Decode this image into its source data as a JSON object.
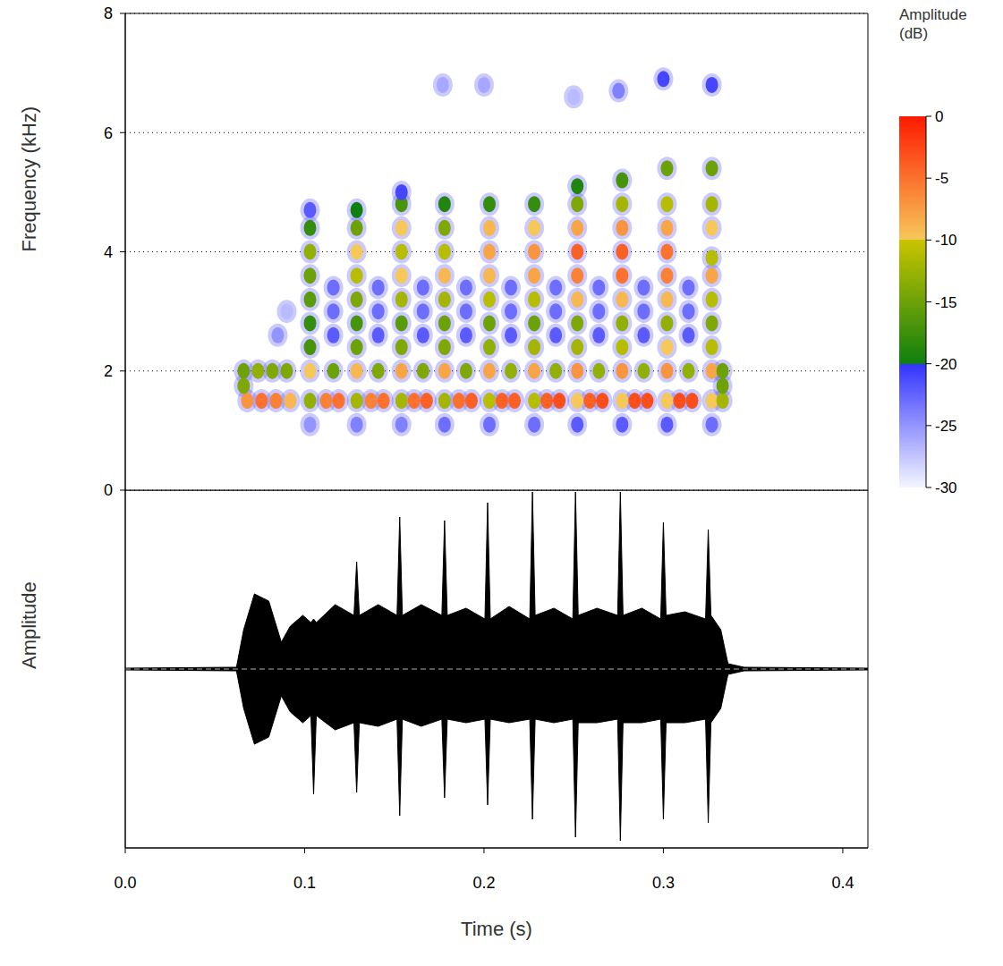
{
  "chart_data": [
    {
      "type": "heatmap",
      "y_label": "Frequency (kHz)",
      "xlim": [
        0,
        0.414
      ],
      "ylim": [
        0,
        8
      ],
      "yticks": [
        0,
        2,
        4,
        6,
        8
      ],
      "grid": true,
      "tick_labels": "y",
      "cells": [
        [
          0.103,
          1.1,
          -25
        ],
        [
          0.103,
          1.5,
          -13
        ],
        [
          0.103,
          2.0,
          -10
        ],
        [
          0.103,
          2.4,
          -17
        ],
        [
          0.103,
          2.8,
          -18
        ],
        [
          0.103,
          3.2,
          -16
        ],
        [
          0.103,
          3.6,
          -15
        ],
        [
          0.103,
          4.0,
          -13
        ],
        [
          0.103,
          4.4,
          -18
        ],
        [
          0.103,
          4.7,
          -22
        ],
        [
          0.129,
          1.1,
          -24
        ],
        [
          0.129,
          1.5,
          -12
        ],
        [
          0.129,
          2.0,
          -9
        ],
        [
          0.129,
          2.4,
          -15
        ],
        [
          0.129,
          2.8,
          -17
        ],
        [
          0.129,
          3.2,
          -14
        ],
        [
          0.129,
          3.6,
          -11
        ],
        [
          0.129,
          4.0,
          -10
        ],
        [
          0.129,
          4.4,
          -15
        ],
        [
          0.129,
          4.7,
          -20
        ],
        [
          0.154,
          1.1,
          -24
        ],
        [
          0.154,
          1.5,
          -12
        ],
        [
          0.154,
          2.0,
          -8
        ],
        [
          0.154,
          2.4,
          -14
        ],
        [
          0.154,
          2.8,
          -16
        ],
        [
          0.154,
          3.2,
          -12
        ],
        [
          0.154,
          3.6,
          -10
        ],
        [
          0.154,
          4.0,
          -11
        ],
        [
          0.154,
          4.4,
          -10
        ],
        [
          0.154,
          4.8,
          -17
        ],
        [
          0.154,
          5.0,
          -21
        ],
        [
          0.178,
          1.1,
          -23
        ],
        [
          0.178,
          1.5,
          -12
        ],
        [
          0.178,
          2.0,
          -8
        ],
        [
          0.178,
          2.4,
          -14
        ],
        [
          0.178,
          2.8,
          -15
        ],
        [
          0.178,
          3.2,
          -12
        ],
        [
          0.178,
          3.6,
          -9
        ],
        [
          0.178,
          4.0,
          -11
        ],
        [
          0.178,
          4.4,
          -14
        ],
        [
          0.178,
          4.8,
          -19
        ],
        [
          0.203,
          1.1,
          -23
        ],
        [
          0.203,
          1.5,
          -11
        ],
        [
          0.203,
          2.0,
          -8
        ],
        [
          0.203,
          2.4,
          -13
        ],
        [
          0.203,
          2.8,
          -15
        ],
        [
          0.203,
          3.2,
          -11
        ],
        [
          0.203,
          3.6,
          -9
        ],
        [
          0.203,
          4.0,
          -8
        ],
        [
          0.203,
          4.4,
          -9
        ],
        [
          0.203,
          4.8,
          -18
        ],
        [
          0.228,
          1.1,
          -23
        ],
        [
          0.228,
          1.5,
          -11
        ],
        [
          0.228,
          2.0,
          -8
        ],
        [
          0.228,
          2.4,
          -12
        ],
        [
          0.228,
          2.8,
          -15
        ],
        [
          0.228,
          3.2,
          -11
        ],
        [
          0.228,
          3.6,
          -8
        ],
        [
          0.228,
          4.0,
          -7
        ],
        [
          0.228,
          4.4,
          -10
        ],
        [
          0.228,
          4.8,
          -18
        ],
        [
          0.252,
          1.1,
          -22
        ],
        [
          0.252,
          1.5,
          -10
        ],
        [
          0.252,
          2.0,
          -7
        ],
        [
          0.252,
          2.4,
          -12
        ],
        [
          0.252,
          2.8,
          -14
        ],
        [
          0.252,
          3.2,
          -9
        ],
        [
          0.252,
          3.6,
          -6
        ],
        [
          0.252,
          4.0,
          -4
        ],
        [
          0.252,
          4.4,
          -8
        ],
        [
          0.252,
          4.8,
          -14
        ],
        [
          0.252,
          5.1,
          -19
        ],
        [
          0.277,
          1.1,
          -22
        ],
        [
          0.277,
          1.5,
          -10
        ],
        [
          0.277,
          2.0,
          -7
        ],
        [
          0.277,
          2.4,
          -11
        ],
        [
          0.277,
          2.8,
          -13
        ],
        [
          0.277,
          3.2,
          -9
        ],
        [
          0.277,
          3.6,
          -5
        ],
        [
          0.277,
          4.0,
          -4
        ],
        [
          0.277,
          4.4,
          -7
        ],
        [
          0.277,
          4.8,
          -12
        ],
        [
          0.277,
          5.2,
          -17
        ],
        [
          0.302,
          1.1,
          -22
        ],
        [
          0.302,
          1.5,
          -10
        ],
        [
          0.302,
          2.0,
          -7
        ],
        [
          0.302,
          2.4,
          -10
        ],
        [
          0.302,
          2.8,
          -13
        ],
        [
          0.302,
          3.2,
          -9
        ],
        [
          0.302,
          3.6,
          -6
        ],
        [
          0.302,
          4.0,
          -5
        ],
        [
          0.302,
          4.4,
          -8
        ],
        [
          0.302,
          4.8,
          -11
        ],
        [
          0.302,
          5.4,
          -15
        ],
        [
          0.327,
          1.1,
          -23
        ],
        [
          0.327,
          1.5,
          -10
        ],
        [
          0.327,
          2.0,
          -8
        ],
        [
          0.327,
          2.4,
          -11
        ],
        [
          0.327,
          2.8,
          -14
        ],
        [
          0.327,
          3.2,
          -11
        ],
        [
          0.327,
          3.6,
          -8
        ],
        [
          0.327,
          3.9,
          -11
        ],
        [
          0.327,
          4.4,
          -10
        ],
        [
          0.327,
          4.8,
          -12
        ],
        [
          0.327,
          5.4,
          -15
        ],
        [
          0.068,
          1.5,
          -7
        ],
        [
          0.076,
          1.5,
          -5
        ],
        [
          0.084,
          1.5,
          -6
        ],
        [
          0.092,
          1.5,
          -9
        ],
        [
          0.112,
          1.5,
          -6
        ],
        [
          0.119,
          1.5,
          -5
        ],
        [
          0.137,
          1.5,
          -6
        ],
        [
          0.144,
          1.5,
          -5
        ],
        [
          0.161,
          1.5,
          -5
        ],
        [
          0.168,
          1.5,
          -4
        ],
        [
          0.186,
          1.5,
          -5
        ],
        [
          0.193,
          1.5,
          -4
        ],
        [
          0.21,
          1.5,
          -4
        ],
        [
          0.217,
          1.5,
          -4
        ],
        [
          0.235,
          1.5,
          -4
        ],
        [
          0.242,
          1.5,
          -3
        ],
        [
          0.259,
          1.5,
          -4
        ],
        [
          0.266,
          1.5,
          -3
        ],
        [
          0.284,
          1.5,
          -3
        ],
        [
          0.291,
          1.5,
          -3
        ],
        [
          0.309,
          1.5,
          -3
        ],
        [
          0.316,
          1.5,
          -3
        ],
        [
          0.333,
          1.5,
          -12
        ],
        [
          0.066,
          2.0,
          -15
        ],
        [
          0.074,
          2.0,
          -13
        ],
        [
          0.082,
          2.0,
          -14
        ],
        [
          0.09,
          2.0,
          -14
        ],
        [
          0.116,
          2.0,
          -15
        ],
        [
          0.141,
          2.0,
          -14
        ],
        [
          0.166,
          2.0,
          -14
        ],
        [
          0.19,
          2.0,
          -14
        ],
        [
          0.215,
          2.0,
          -13
        ],
        [
          0.24,
          2.0,
          -13
        ],
        [
          0.264,
          2.0,
          -13
        ],
        [
          0.289,
          2.0,
          -13
        ],
        [
          0.314,
          2.0,
          -13
        ],
        [
          0.333,
          2.0,
          -15
        ],
        [
          0.066,
          1.75,
          -14
        ],
        [
          0.333,
          1.75,
          -15
        ],
        [
          0.085,
          2.6,
          -25
        ],
        [
          0.09,
          3.0,
          -27
        ],
        [
          0.116,
          2.6,
          -22
        ],
        [
          0.116,
          3.0,
          -23
        ],
        [
          0.116,
          3.4,
          -23
        ],
        [
          0.141,
          2.6,
          -22
        ],
        [
          0.141,
          3.0,
          -23
        ],
        [
          0.141,
          3.4,
          -23
        ],
        [
          0.166,
          2.6,
          -22
        ],
        [
          0.166,
          3.0,
          -23
        ],
        [
          0.166,
          3.4,
          -23
        ],
        [
          0.19,
          2.6,
          -22
        ],
        [
          0.19,
          3.0,
          -23
        ],
        [
          0.19,
          3.4,
          -23
        ],
        [
          0.215,
          2.6,
          -22
        ],
        [
          0.215,
          3.0,
          -23
        ],
        [
          0.215,
          3.4,
          -23
        ],
        [
          0.24,
          2.6,
          -22
        ],
        [
          0.24,
          3.0,
          -23
        ],
        [
          0.24,
          3.4,
          -23
        ],
        [
          0.264,
          2.6,
          -22
        ],
        [
          0.264,
          3.0,
          -23
        ],
        [
          0.264,
          3.4,
          -23
        ],
        [
          0.289,
          2.6,
          -22
        ],
        [
          0.289,
          3.0,
          -23
        ],
        [
          0.289,
          3.4,
          -23
        ],
        [
          0.314,
          2.6,
          -22
        ],
        [
          0.314,
          3.0,
          -23
        ],
        [
          0.314,
          3.4,
          -23
        ],
        [
          0.177,
          6.8,
          -26
        ],
        [
          0.2,
          6.8,
          -26
        ],
        [
          0.25,
          6.6,
          -27
        ],
        [
          0.275,
          6.7,
          -24
        ],
        [
          0.3,
          6.9,
          -21
        ],
        [
          0.327,
          6.8,
          -21
        ]
      ],
      "color_bar": {
        "label": "Amplitude (dB)",
        "range": [
          -30,
          0
        ],
        "ticks": [
          0,
          -5,
          -10,
          -15,
          -20,
          -25,
          -30
        ],
        "color_scale": [
          [
            -30,
            "#f4f5ff"
          ],
          [
            -20,
            "#3333ff"
          ],
          [
            -20,
            "#0f7f0f"
          ],
          [
            -10,
            "#c9c400"
          ],
          [
            -10,
            "#f6c85a"
          ],
          [
            0,
            "#ff1a00"
          ]
        ]
      }
    },
    {
      "type": "area",
      "x_label": "Time (s)",
      "y_label": "Amplitude",
      "xlim": [
        0,
        0.414
      ],
      "xticks": [
        {
          "value": 0,
          "label": "0.0"
        },
        0.1,
        0.2,
        0.3,
        0.4
      ],
      "ylim": [
        -1,
        1
      ],
      "baseline": 0,
      "tick_labels": "x",
      "color": "#000000",
      "t": [
        0,
        0.062,
        0.066,
        0.072,
        0.08,
        0.087,
        0.092,
        0.099,
        0.1035,
        0.105,
        0.1065,
        0.117,
        0.1275,
        0.129,
        0.1305,
        0.141,
        0.1515,
        0.153,
        0.1545,
        0.165,
        0.1765,
        0.178,
        0.1795,
        0.19,
        0.2005,
        0.202,
        0.2035,
        0.214,
        0.2255,
        0.227,
        0.2285,
        0.239,
        0.2495,
        0.251,
        0.2525,
        0.263,
        0.2745,
        0.276,
        0.2775,
        0.288,
        0.2985,
        0.3,
        0.3015,
        0.312,
        0.3235,
        0.325,
        0.3265,
        0.332,
        0.336,
        0.345,
        0.414
      ],
      "upper": [
        0.005,
        0.01,
        0.22,
        0.42,
        0.38,
        0.15,
        0.24,
        0.3,
        0.26,
        0.28,
        0.26,
        0.36,
        0.3,
        0.6,
        0.3,
        0.36,
        0.3,
        0.85,
        0.3,
        0.36,
        0.3,
        0.83,
        0.3,
        0.34,
        0.28,
        0.93,
        0.28,
        0.35,
        0.28,
        0.99,
        0.3,
        0.34,
        0.28,
        0.99,
        0.3,
        0.34,
        0.3,
        0.99,
        0.3,
        0.34,
        0.28,
        0.82,
        0.3,
        0.32,
        0.28,
        0.78,
        0.3,
        0.22,
        0.03,
        0.01,
        0.005
      ],
      "lower": [
        -0.005,
        -0.01,
        -0.22,
        -0.42,
        -0.38,
        -0.15,
        -0.24,
        -0.3,
        -0.26,
        -0.7,
        -0.26,
        -0.34,
        -0.3,
        -0.69,
        -0.3,
        -0.32,
        -0.28,
        -0.82,
        -0.28,
        -0.32,
        -0.28,
        -0.72,
        -0.28,
        -0.3,
        -0.28,
        -0.76,
        -0.28,
        -0.3,
        -0.28,
        -0.84,
        -0.28,
        -0.3,
        -0.28,
        -0.94,
        -0.3,
        -0.3,
        -0.28,
        -0.96,
        -0.3,
        -0.3,
        -0.28,
        -0.84,
        -0.3,
        -0.3,
        -0.28,
        -0.86,
        -0.3,
        -0.22,
        -0.03,
        -0.01,
        -0.005
      ]
    }
  ]
}
